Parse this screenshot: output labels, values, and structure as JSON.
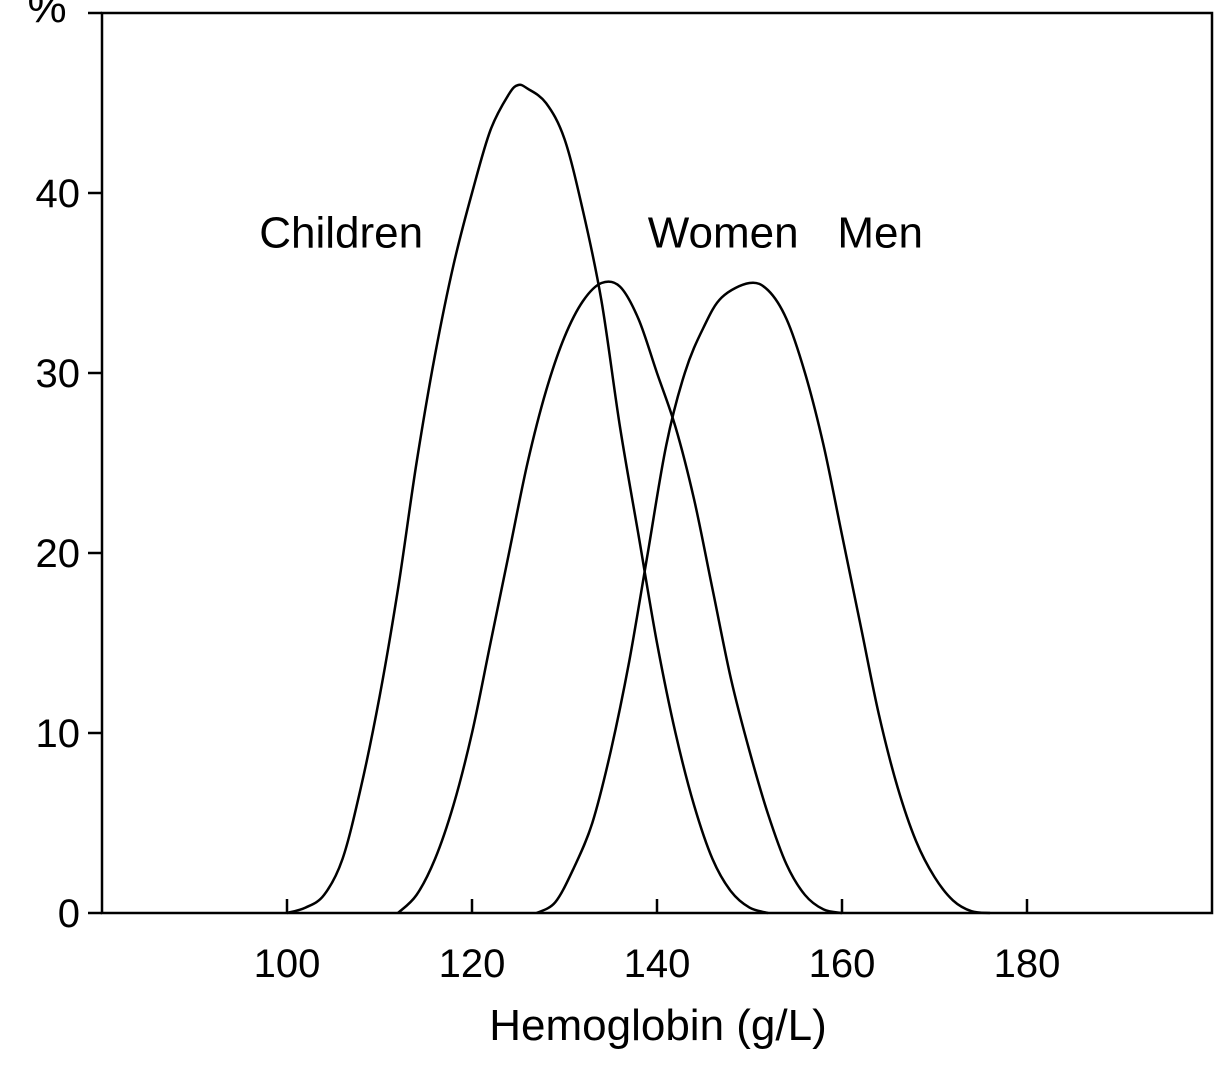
{
  "chart_data": {
    "type": "line",
    "title": "",
    "xlabel": "Hemoglobin (g/L)",
    "ylabel": "%",
    "xlim": [
      80,
      200
    ],
    "ylim": [
      0,
      50
    ],
    "x_ticks": [
      100,
      120,
      140,
      160,
      180
    ],
    "y_ticks": [
      0,
      10,
      20,
      30,
      40
    ],
    "grid": false,
    "legend": "none",
    "series": [
      {
        "name": "Children",
        "points": [
          [
            100,
            0
          ],
          [
            102,
            0.3
          ],
          [
            104,
            1
          ],
          [
            106,
            3
          ],
          [
            108,
            7
          ],
          [
            110,
            12
          ],
          [
            112,
            18
          ],
          [
            114,
            25
          ],
          [
            116,
            31
          ],
          [
            118,
            36
          ],
          [
            120,
            40
          ],
          [
            122,
            43.5
          ],
          [
            124,
            45.5
          ],
          [
            125,
            46
          ],
          [
            126,
            45.8
          ],
          [
            128,
            45
          ],
          [
            130,
            43
          ],
          [
            132,
            39
          ],
          [
            134,
            34
          ],
          [
            136,
            27
          ],
          [
            138,
            21
          ],
          [
            140,
            15
          ],
          [
            142,
            10
          ],
          [
            144,
            6
          ],
          [
            146,
            3
          ],
          [
            148,
            1.2
          ],
          [
            150,
            0.3
          ],
          [
            152,
            0
          ]
        ]
      },
      {
        "name": "Women",
        "points": [
          [
            112,
            0
          ],
          [
            114,
            1
          ],
          [
            116,
            3
          ],
          [
            118,
            6
          ],
          [
            120,
            10
          ],
          [
            122,
            15
          ],
          [
            124,
            20
          ],
          [
            126,
            25
          ],
          [
            128,
            29
          ],
          [
            130,
            32
          ],
          [
            132,
            34
          ],
          [
            134,
            35
          ],
          [
            136,
            34.8
          ],
          [
            138,
            33
          ],
          [
            140,
            30
          ],
          [
            142,
            27
          ],
          [
            144,
            23
          ],
          [
            146,
            18
          ],
          [
            148,
            13
          ],
          [
            150,
            9
          ],
          [
            152,
            5.5
          ],
          [
            154,
            2.7
          ],
          [
            156,
            1
          ],
          [
            158,
            0.2
          ],
          [
            160,
            0
          ]
        ]
      },
      {
        "name": "Men",
        "points": [
          [
            127,
            0
          ],
          [
            129,
            0.6
          ],
          [
            131,
            2.5
          ],
          [
            133,
            5
          ],
          [
            135,
            9
          ],
          [
            137,
            14
          ],
          [
            139,
            20
          ],
          [
            141,
            26
          ],
          [
            143,
            30
          ],
          [
            145,
            32.5
          ],
          [
            147,
            34.2
          ],
          [
            150,
            35
          ],
          [
            152,
            34.6
          ],
          [
            154,
            33
          ],
          [
            156,
            30
          ],
          [
            158,
            26
          ],
          [
            160,
            21
          ],
          [
            162,
            16
          ],
          [
            164,
            11
          ],
          [
            166,
            7
          ],
          [
            168,
            4
          ],
          [
            170,
            2
          ],
          [
            172,
            0.7
          ],
          [
            174,
            0.1
          ],
          [
            176,
            0
          ]
        ]
      }
    ],
    "series_labels": [
      {
        "text": "Children",
        "x": 97,
        "y": 37.8
      },
      {
        "text": "Women",
        "x": 139,
        "y": 37.8
      },
      {
        "text": "Men",
        "x": 159.5,
        "y": 37.8
      }
    ]
  }
}
